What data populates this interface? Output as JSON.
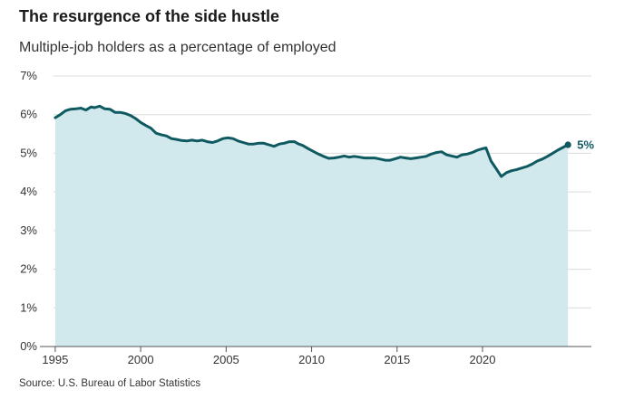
{
  "chart_data": {
    "type": "area",
    "title": "The resurgence of the side hustle",
    "subtitle": "Multiple-job holders as a percentage of employed",
    "source": "Source: U.S. Bureau of Labor Statistics",
    "xlabel": "",
    "ylabel": "",
    "xlim": [
      1994.9,
      2025.2
    ],
    "ylim": [
      0,
      7
    ],
    "y_ticks": [
      0,
      1,
      2,
      3,
      4,
      5,
      6,
      7
    ],
    "y_tick_labels": [
      "0%",
      "1%",
      "2%",
      "3%",
      "4%",
      "5%",
      "6%",
      "7%"
    ],
    "x_ticks": [
      1995,
      2000,
      2005,
      2010,
      2015,
      2020
    ],
    "x_tick_labels": [
      "1995",
      "2000",
      "2005",
      "2010",
      "2015",
      "2020"
    ],
    "grid": true,
    "end_label": "5%",
    "colors": {
      "line": "#0f5a61",
      "area": "#d1e8ec",
      "grid": "#dcdcdc",
      "axis": "#555555",
      "label": "#0f5a61"
    },
    "series": [
      {
        "x": [
          1995.0,
          1995.3,
          1995.6,
          1995.9,
          1996.2,
          1996.5,
          1996.8,
          1997.1,
          1997.3,
          1997.6,
          1997.9,
          1998.2,
          1998.5,
          1998.8,
          1999.1,
          1999.4,
          1999.7,
          2000.0,
          2000.3,
          2000.6,
          2000.9,
          2001.2,
          2001.5,
          2001.8,
          2002.1,
          2002.4,
          2002.7,
          2003.0,
          2003.3,
          2003.6,
          2003.9,
          2004.2,
          2004.5,
          2004.8,
          2005.1,
          2005.4,
          2005.7,
          2006.0,
          2006.3,
          2006.6,
          2006.9,
          2007.2,
          2007.5,
          2007.8,
          2008.1,
          2008.4,
          2008.7,
          2009.0,
          2009.2,
          2009.5,
          2009.8,
          2010.1,
          2010.4,
          2010.7,
          2011.0,
          2011.3,
          2011.6,
          2011.9,
          2012.2,
          2012.5,
          2012.8,
          2013.1,
          2013.4,
          2013.7,
          2014.0,
          2014.3,
          2014.6,
          2014.9,
          2015.2,
          2015.5,
          2015.8,
          2016.1,
          2016.4,
          2016.7,
          2017.0,
          2017.3,
          2017.6,
          2017.9,
          2018.2,
          2018.5,
          2018.8,
          2019.1,
          2019.4,
          2019.7,
          2020.0,
          2020.2,
          2020.5,
          2020.8,
          2021.1,
          2021.4,
          2021.7,
          2022.0,
          2022.3,
          2022.6,
          2022.9,
          2023.2,
          2023.5,
          2023.8,
          2024.1,
          2024.4,
          2024.7,
          2025.0
        ],
        "values": [
          5.92,
          6.0,
          6.1,
          6.14,
          6.15,
          6.17,
          6.12,
          6.2,
          6.18,
          6.22,
          6.15,
          6.14,
          6.06,
          6.06,
          6.03,
          5.98,
          5.9,
          5.8,
          5.72,
          5.65,
          5.52,
          5.48,
          5.45,
          5.38,
          5.36,
          5.33,
          5.32,
          5.34,
          5.32,
          5.34,
          5.3,
          5.28,
          5.32,
          5.38,
          5.4,
          5.38,
          5.32,
          5.28,
          5.24,
          5.24,
          5.26,
          5.26,
          5.22,
          5.18,
          5.24,
          5.26,
          5.3,
          5.3,
          5.25,
          5.2,
          5.12,
          5.05,
          4.98,
          4.92,
          4.87,
          4.88,
          4.9,
          4.93,
          4.9,
          4.92,
          4.9,
          4.88,
          4.88,
          4.88,
          4.85,
          4.82,
          4.82,
          4.86,
          4.9,
          4.88,
          4.86,
          4.88,
          4.9,
          4.92,
          4.98,
          5.02,
          5.04,
          4.96,
          4.93,
          4.9,
          4.96,
          4.98,
          5.02,
          5.08,
          5.12,
          5.14,
          4.8,
          4.6,
          4.4,
          4.5,
          4.55,
          4.58,
          4.62,
          4.66,
          4.72,
          4.8,
          4.85,
          4.92,
          5.0,
          5.08,
          5.15,
          5.22
        ]
      }
    ]
  }
}
